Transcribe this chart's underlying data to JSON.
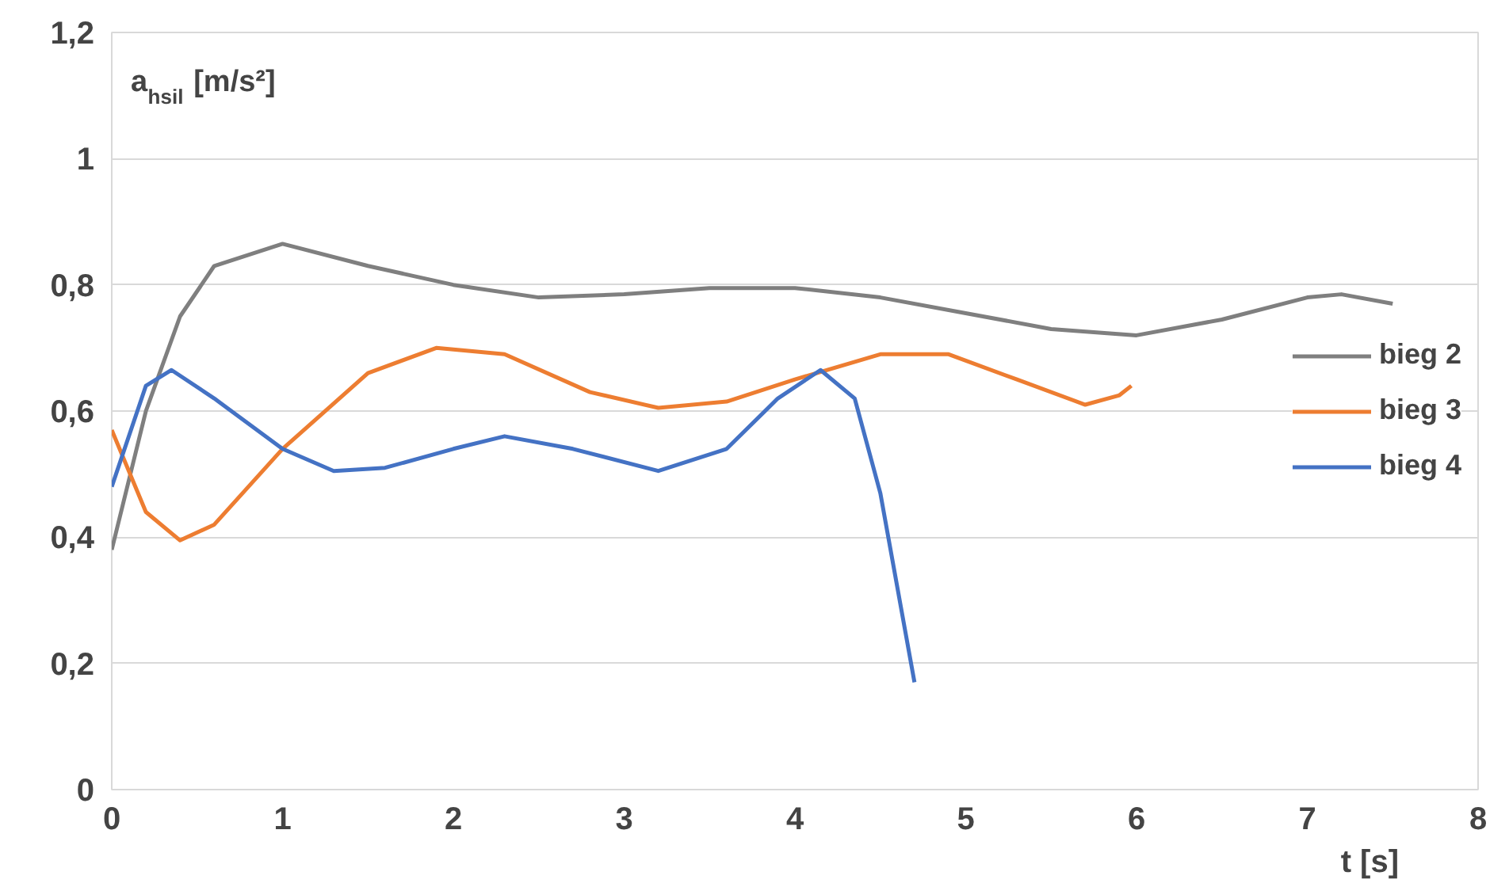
{
  "chart_data": {
    "type": "line",
    "ylabel": "a$_{hsil}$ [m/s²]",
    "xlabel": "t [s]",
    "xlim": [
      0,
      8
    ],
    "xticks": [
      0,
      1,
      2,
      3,
      4,
      5,
      6,
      7,
      8
    ],
    "ylim": [
      0,
      1.2
    ],
    "yticks": [
      0,
      {
        "value": 0.2,
        "label": "0,2"
      },
      {
        "value": 0.4,
        "label": "0,4"
      },
      {
        "value": 0.6,
        "label": "0,6"
      },
      {
        "value": 0.8,
        "label": "0,8"
      },
      1,
      {
        "value": 1.2,
        "label": "1,2"
      }
    ],
    "grid": "y",
    "legend": "right",
    "series": [
      {
        "name": "bieg 2",
        "color": "#7f7f7f",
        "x": [
          0,
          0.2,
          0.4,
          0.6,
          1,
          1.5,
          2,
          2.5,
          3,
          3.5,
          4,
          4.5,
          5,
          5.5,
          6,
          6.5,
          7,
          7.2,
          7.5
        ],
        "values": [
          0.38,
          0.6,
          0.75,
          0.83,
          0.865,
          0.83,
          0.8,
          0.78,
          0.785,
          0.795,
          0.795,
          0.78,
          0.755,
          0.73,
          0.72,
          0.745,
          0.78,
          0.785,
          0.77
        ]
      },
      {
        "name": "bieg 3",
        "color": "#ed7d31",
        "x": [
          0,
          0.2,
          0.4,
          0.6,
          1,
          1.5,
          1.9,
          2.3,
          2.8,
          3.2,
          3.6,
          4,
          4.5,
          4.9,
          5.3,
          5.7,
          5.9,
          5.97
        ],
        "values": [
          0.57,
          0.44,
          0.395,
          0.42,
          0.54,
          0.66,
          0.7,
          0.69,
          0.63,
          0.605,
          0.615,
          0.65,
          0.69,
          0.69,
          0.65,
          0.61,
          0.625,
          0.64
        ]
      },
      {
        "name": "bieg 4",
        "color": "#4472c4",
        "x": [
          0,
          0.2,
          0.35,
          0.6,
          1,
          1.3,
          1.6,
          2,
          2.3,
          2.7,
          3.2,
          3.6,
          3.9,
          4.15,
          4.35,
          4.5,
          4.6,
          4.7
        ],
        "values": [
          0.48,
          0.64,
          0.665,
          0.62,
          0.54,
          0.505,
          0.51,
          0.54,
          0.56,
          0.54,
          0.505,
          0.54,
          0.62,
          0.665,
          0.62,
          0.47,
          0.32,
          0.17
        ]
      }
    ]
  }
}
